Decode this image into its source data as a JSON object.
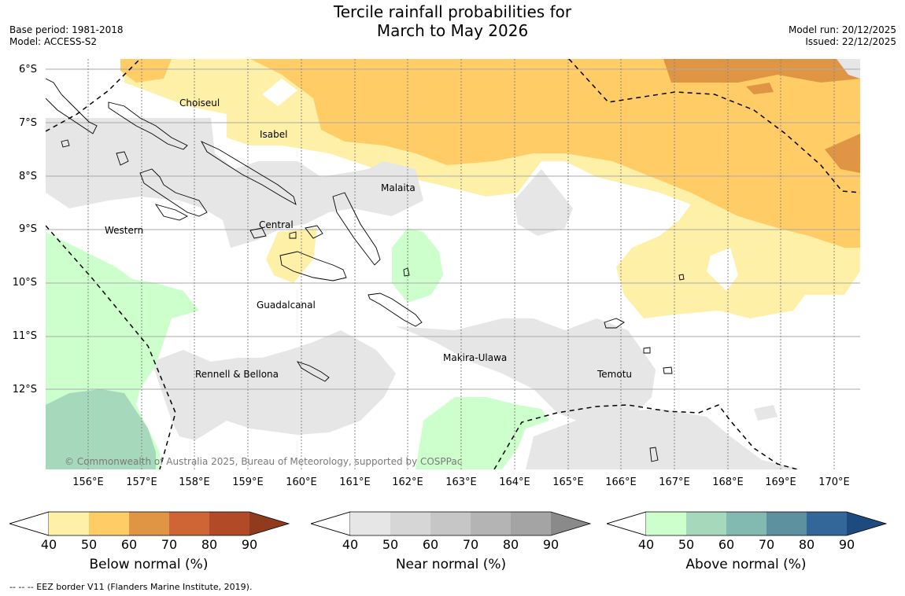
{
  "title": {
    "line1": "Tercile rainfall probabilities for",
    "line2": "March to May 2026"
  },
  "meta": {
    "base_period": "Base period: 1981-2018",
    "model": "Model: ACCESS-S2",
    "model_run": "Model run: 20/12/2025",
    "issued": "Issued: 22/12/2025"
  },
  "axes": {
    "lat_labels": [
      "6°S",
      "7°S",
      "8°S",
      "9°S",
      "10°S",
      "11°S",
      "12°S"
    ],
    "lon_labels": [
      "156°E",
      "157°E",
      "158°E",
      "159°E",
      "160°E",
      "161°E",
      "162°E",
      "163°E",
      "164°E",
      "165°E",
      "166°E",
      "167°E",
      "168°E",
      "169°E",
      "170°E"
    ]
  },
  "places": {
    "choiseul": "Choiseul",
    "isabel": "Isabel",
    "malaita": "Malaita",
    "western": "Western",
    "central": "Central",
    "guadalcanal": "Guadalcanal",
    "makira": "Makira-Ulawa",
    "temotu": "Temotu",
    "rennell": "Rennell & Bellona"
  },
  "copyright": "© Commonwealth of Australia 2025, Bureau of Meteorology, supported by COSPPac",
  "colorbars": {
    "ticks": [
      "40",
      "50",
      "60",
      "70",
      "80",
      "90"
    ],
    "below": {
      "label": "Below normal (%)",
      "colors": [
        "#fff0a8",
        "#ffcc66",
        "#e09545",
        "#cf6535",
        "#b24a28",
        "#923a1e"
      ]
    },
    "near": {
      "label": "Near normal (%)",
      "colors": [
        "#e6e6e6",
        "#d6d6d6",
        "#c6c6c6",
        "#b4b4b4",
        "#a4a4a4",
        "#8a8a8a"
      ]
    },
    "above": {
      "label": "Above normal (%)",
      "colors": [
        "#ccffcc",
        "#a6d8bb",
        "#82b9b0",
        "#5d919f",
        "#336699",
        "#1d4b80"
      ]
    }
  },
  "footer": "--  --  -- EEZ border V11 (Flanders Marine Institute, 2019)."
}
